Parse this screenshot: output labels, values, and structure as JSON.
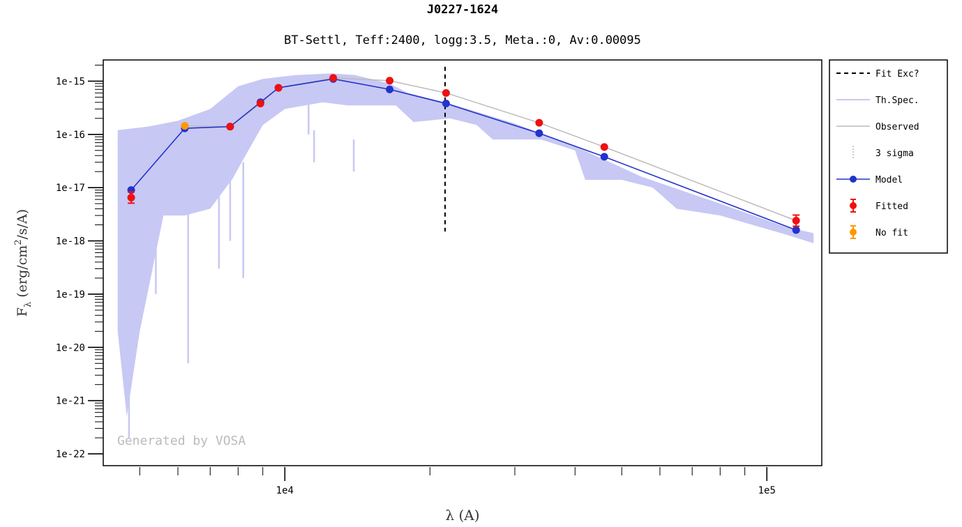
{
  "chart_data": {
    "type": "line",
    "title": "J0227-1624",
    "subtitle": "BT-Settl, Teff:2400, logg:3.5, Meta.:0, Av:0.00095",
    "xlabel": "λ (A)",
    "ylabel_main": "F",
    "ylabel_sub": "λ",
    "ylabel_rest": " (erg/cm",
    "ylabel_sup": "2",
    "ylabel_end": "/s/A)",
    "x_scale": "log",
    "y_scale": "log",
    "xlim": [
      4200,
      130000
    ],
    "ylim": [
      6e-23,
      2.5e-15
    ],
    "x_tick_labels": [
      {
        "value": 10000,
        "label": "1e4"
      },
      {
        "value": 100000,
        "label": "1e5"
      }
    ],
    "y_tick_labels": [
      {
        "value": 1e-15,
        "label": "1e-15"
      },
      {
        "value": 1e-16,
        "label": "1e-16"
      },
      {
        "value": 1e-17,
        "label": "1e-17"
      },
      {
        "value": 1e-18,
        "label": "1e-18"
      },
      {
        "value": 1e-19,
        "label": "1e-19"
      },
      {
        "value": 1e-20,
        "label": "1e-20"
      },
      {
        "value": 1e-21,
        "label": "1e-21"
      },
      {
        "value": 1e-22,
        "label": "1e-22"
      }
    ],
    "watermark": "Generated by VOSA",
    "legend_position": "outside-right",
    "legend": [
      {
        "key": "fit_exc",
        "label": "Fit Exc?"
      },
      {
        "key": "th_spec",
        "label": "Th.Spec."
      },
      {
        "key": "observed",
        "label": "Observed"
      },
      {
        "key": "three_sigma",
        "label": "3 sigma"
      },
      {
        "key": "model",
        "label": "Model"
      },
      {
        "key": "fitted",
        "label": "Fitted"
      },
      {
        "key": "no_fit",
        "label": "No fit"
      }
    ],
    "fit_exclusion_x": 21500,
    "series": [
      {
        "name": "Model",
        "color": "#2233cc",
        "points": [
          {
            "x": 4800,
            "y": 9e-18
          },
          {
            "x": 6200,
            "y": 1.3e-16
          },
          {
            "x": 7700,
            "y": 1.4e-16
          },
          {
            "x": 8900,
            "y": 4e-16
          },
          {
            "x": 9700,
            "y": 7.5e-16
          },
          {
            "x": 12600,
            "y": 1.1e-15
          },
          {
            "x": 16500,
            "y": 7e-16
          },
          {
            "x": 21600,
            "y": 3.8e-16
          },
          {
            "x": 33700,
            "y": 1.05e-16
          },
          {
            "x": 46000,
            "y": 3.8e-17
          },
          {
            "x": 115000,
            "y": 1.6e-18
          }
        ]
      },
      {
        "name": "Fitted",
        "color": "#ee1111",
        "points": [
          {
            "x": 4800,
            "y": 6.5e-18
          },
          {
            "x": 7700,
            "y": 1.4e-16
          },
          {
            "x": 8900,
            "y": 3.8e-16
          },
          {
            "x": 9700,
            "y": 7.5e-16
          },
          {
            "x": 12600,
            "y": 1.15e-15
          },
          {
            "x": 16500,
            "y": 1.02e-15
          },
          {
            "x": 21600,
            "y": 6e-16
          },
          {
            "x": 33700,
            "y": 1.65e-16
          },
          {
            "x": 46000,
            "y": 5.8e-17
          },
          {
            "x": 115000,
            "y": 2.4e-18
          }
        ]
      },
      {
        "name": "No fit",
        "color": "#ff9900",
        "points": [
          {
            "x": 6200,
            "y": 1.45e-16
          }
        ]
      },
      {
        "name": "Observed",
        "color": "#bbbbbb",
        "points": [
          {
            "x": 6200,
            "y": 1.45e-16
          },
          {
            "x": 7700,
            "y": 1.4e-16
          },
          {
            "x": 8900,
            "y": 3.8e-16
          },
          {
            "x": 9700,
            "y": 7.5e-16
          },
          {
            "x": 12600,
            "y": 1.15e-15
          },
          {
            "x": 16500,
            "y": 1.02e-15
          },
          {
            "x": 21600,
            "y": 6e-16
          },
          {
            "x": 33700,
            "y": 1.65e-16
          },
          {
            "x": 46000,
            "y": 5.8e-17
          },
          {
            "x": 115000,
            "y": 2.4e-18
          }
        ]
      },
      {
        "name": "Th.Spec.",
        "color": "#c8c8f4",
        "upper": [
          {
            "x": 4500,
            "y": 1.2e-16
          },
          {
            "x": 5200,
            "y": 1.4e-16
          },
          {
            "x": 6000,
            "y": 1.8e-16
          },
          {
            "x": 7000,
            "y": 3e-16
          },
          {
            "x": 8000,
            "y": 8e-16
          },
          {
            "x": 9000,
            "y": 1.1e-15
          },
          {
            "x": 10500,
            "y": 1.3e-15
          },
          {
            "x": 12500,
            "y": 1.4e-15
          },
          {
            "x": 14000,
            "y": 1.3e-15
          },
          {
            "x": 16500,
            "y": 9e-16
          },
          {
            "x": 18000,
            "y": 6e-16
          },
          {
            "x": 22000,
            "y": 3.8e-16
          },
          {
            "x": 30000,
            "y": 1.6e-16
          },
          {
            "x": 40000,
            "y": 6e-17
          },
          {
            "x": 55000,
            "y": 1.6e-17
          },
          {
            "x": 80000,
            "y": 5e-18
          },
          {
            "x": 110000,
            "y": 1.8e-18
          },
          {
            "x": 125000,
            "y": 1.4e-18
          }
        ],
        "lower": [
          {
            "x": 4500,
            "y": 2e-20
          },
          {
            "x": 4700,
            "y": 5e-22
          },
          {
            "x": 5000,
            "y": 2e-20
          },
          {
            "x": 5600,
            "y": 3e-18
          },
          {
            "x": 6200,
            "y": 3e-18
          },
          {
            "x": 7000,
            "y": 4e-18
          },
          {
            "x": 7800,
            "y": 1.5e-17
          },
          {
            "x": 8400,
            "y": 5e-17
          },
          {
            "x": 9000,
            "y": 1.5e-16
          },
          {
            "x": 10000,
            "y": 3e-16
          },
          {
            "x": 11000,
            "y": 3.5e-16
          },
          {
            "x": 12000,
            "y": 4e-16
          },
          {
            "x": 13500,
            "y": 3.5e-16
          },
          {
            "x": 15000,
            "y": 3.5e-16
          },
          {
            "x": 17000,
            "y": 3.5e-16
          },
          {
            "x": 18500,
            "y": 1.7e-16
          },
          {
            "x": 22000,
            "y": 2e-16
          },
          {
            "x": 25000,
            "y": 1.5e-16
          },
          {
            "x": 27000,
            "y": 8e-17
          },
          {
            "x": 34000,
            "y": 8e-17
          },
          {
            "x": 40000,
            "y": 5e-17
          },
          {
            "x": 42000,
            "y": 1.4e-17
          },
          {
            "x": 50000,
            "y": 1.4e-17
          },
          {
            "x": 58000,
            "y": 1e-17
          },
          {
            "x": 65000,
            "y": 4e-18
          },
          {
            "x": 80000,
            "y": 3e-18
          },
          {
            "x": 110000,
            "y": 1.3e-18
          },
          {
            "x": 125000,
            "y": 9e-19
          }
        ],
        "dips": [
          {
            "x": 4550,
            "y": 3e-20
          },
          {
            "x": 4750,
            "y": 2e-22
          },
          {
            "x": 4900,
            "y": 1e-20
          },
          {
            "x": 5100,
            "y": 8e-20
          },
          {
            "x": 5400,
            "y": 1e-19
          },
          {
            "x": 6300,
            "y": 5e-21
          },
          {
            "x": 7300,
            "y": 3e-19
          },
          {
            "x": 7700,
            "y": 1e-18
          },
          {
            "x": 8200,
            "y": 2e-19
          },
          {
            "x": 11200,
            "y": 1e-16
          },
          {
            "x": 11500,
            "y": 3e-17
          },
          {
            "x": 13900,
            "y": 2e-17
          }
        ]
      }
    ]
  }
}
